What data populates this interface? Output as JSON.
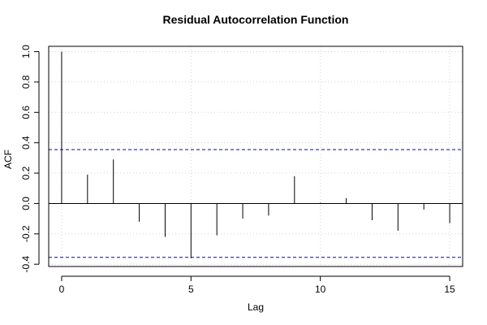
{
  "chart_data": {
    "type": "bar",
    "title": "Residual Autocorrelation Function",
    "xlabel": "Lag",
    "ylabel": "ACF",
    "xlim": [
      -0.5,
      15.5
    ],
    "ylim": [
      -0.4,
      1.0
    ],
    "x_ticks": [
      "0",
      "5",
      "10",
      "15"
    ],
    "y_ticks": [
      "-0.4",
      "-0.2",
      "0.0",
      "0.2",
      "0.4",
      "0.6",
      "0.8",
      "1.0"
    ],
    "x": [
      0,
      1,
      2,
      3,
      4,
      5,
      6,
      7,
      8,
      9,
      10,
      11,
      12,
      13,
      14,
      15
    ],
    "values": [
      1.0,
      0.19,
      0.29,
      -0.12,
      -0.22,
      -0.36,
      -0.21,
      -0.1,
      -0.08,
      0.18,
      0.005,
      0.035,
      -0.11,
      -0.18,
      -0.04,
      -0.13
    ],
    "confidence_band": [
      -0.355,
      0.355
    ],
    "confidence_color": "#0000cc",
    "grid": true
  }
}
